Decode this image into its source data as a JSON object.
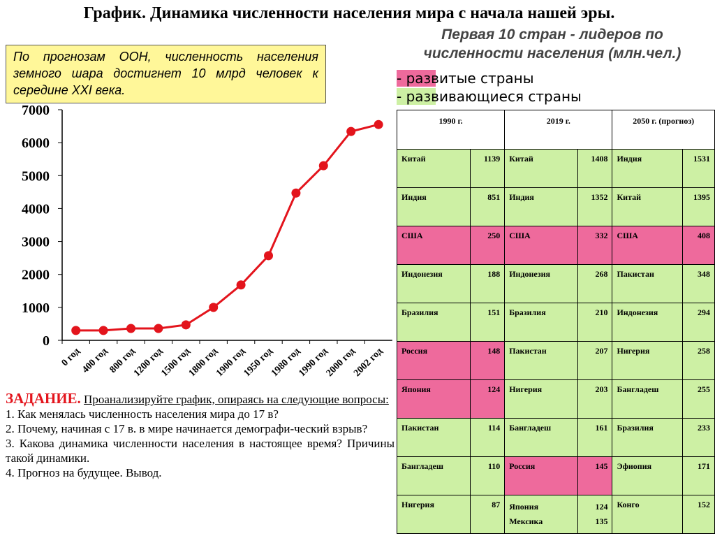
{
  "title": "График. Динамика численности населения мира с начала нашей эры.",
  "note": "По прогнозам ООН, численность населения земного шара достигнет 10 млрд человек к середине XXI века.",
  "chart_data": {
    "type": "line",
    "categories": [
      "0 год",
      "400 год",
      "800 год",
      "1200 год",
      "1500 год",
      "1800 год",
      "1900 год",
      "1950 год",
      "1980 год",
      "1990 год",
      "2000 год",
      "2002 год"
    ],
    "values": [
      300,
      300,
      360,
      360,
      470,
      1000,
      1680,
      2570,
      4470,
      5300,
      6340,
      6550
    ],
    "color": "#e3141c",
    "ylim": [
      0,
      7000
    ],
    "yticks": [
      0,
      1000,
      2000,
      3000,
      4000,
      5000,
      6000,
      7000
    ]
  },
  "task": {
    "heading": "ЗАДАНИЕ.",
    "intro": "Проанализируйте график, опираясь на следующие вопросы:",
    "questions": [
      "1. Как менялась численность населения мира до 17 в?",
      "2. Почему, начиная с 17 в. в мире начинается демографи-ческий взрыв?",
      "3. Какова динамика численности населения в настоящее время? Причины такой динамики.",
      "4. Прогноз на будущее. Вывод."
    ]
  },
  "table_title": "Первая 10 стран - лидеров по численности населения (млн.чел.)",
  "legend": {
    "developed": {
      "label": "- развитые страны",
      "color": "#ee6a9c"
    },
    "developing": {
      "label": "- развивающиеся страны",
      "color": "#cdf0a4"
    }
  },
  "table": {
    "headers": [
      "1990 г.",
      "2019 г.",
      "2050 г. (прогноз)"
    ],
    "rows": [
      [
        {
          "country": "Китай",
          "pop": 1139,
          "group": "developing"
        },
        {
          "country": "Китай",
          "pop": 1408,
          "group": "developing"
        },
        {
          "country": "Индия",
          "pop": 1531,
          "group": "developing"
        }
      ],
      [
        {
          "country": "Индия",
          "pop": 851,
          "group": "developing"
        },
        {
          "country": "Индия",
          "pop": 1352,
          "group": "developing"
        },
        {
          "country": "Китай",
          "pop": 1395,
          "group": "developing"
        }
      ],
      [
        {
          "country": "США",
          "pop": 250,
          "group": "developed"
        },
        {
          "country": "США",
          "pop": 332,
          "group": "developed"
        },
        {
          "country": "США",
          "pop": 408,
          "group": "developed"
        }
      ],
      [
        {
          "country": "Индонезия",
          "pop": 188,
          "group": "developing"
        },
        {
          "country": "Индонезия",
          "pop": 268,
          "group": "developing"
        },
        {
          "country": "Пакистан",
          "pop": 348,
          "group": "developing"
        }
      ],
      [
        {
          "country": "Бразилия",
          "pop": 151,
          "group": "developing"
        },
        {
          "country": "Бразилия",
          "pop": 210,
          "group": "developing"
        },
        {
          "country": "Индонезия",
          "pop": 294,
          "group": "developing"
        }
      ],
      [
        {
          "country": "Россия",
          "pop": 148,
          "group": "developed"
        },
        {
          "country": "Пакистан",
          "pop": 207,
          "group": "developing"
        },
        {
          "country": "Нигерия",
          "pop": 258,
          "group": "developing"
        }
      ],
      [
        {
          "country": "Япония",
          "pop": 124,
          "group": "developed"
        },
        {
          "country": "Нигерия",
          "pop": 203,
          "group": "developing"
        },
        {
          "country": "Бангладеш",
          "pop": 255,
          "group": "developing"
        }
      ],
      [
        {
          "country": "Пакистан",
          "pop": 114,
          "group": "developing"
        },
        {
          "country": "Бангладеш",
          "pop": 161,
          "group": "developing"
        },
        {
          "country": "Бразилия",
          "pop": 233,
          "group": "developing"
        }
      ],
      [
        {
          "country": "Бангладеш",
          "pop": 110,
          "group": "developing"
        },
        {
          "country": "Россия",
          "pop": 145,
          "group": "developed"
        },
        {
          "country": "Эфиопия",
          "pop": 171,
          "group": "developing"
        }
      ],
      [
        {
          "country": "Нигерия",
          "pop": 87,
          "group": "developing"
        },
        {
          "country": [
            "Япония",
            "Мексика"
          ],
          "pop": [
            124,
            135
          ],
          "group": "developing"
        },
        {
          "country": "Конго",
          "pop": 152,
          "group": "developing"
        }
      ]
    ]
  }
}
